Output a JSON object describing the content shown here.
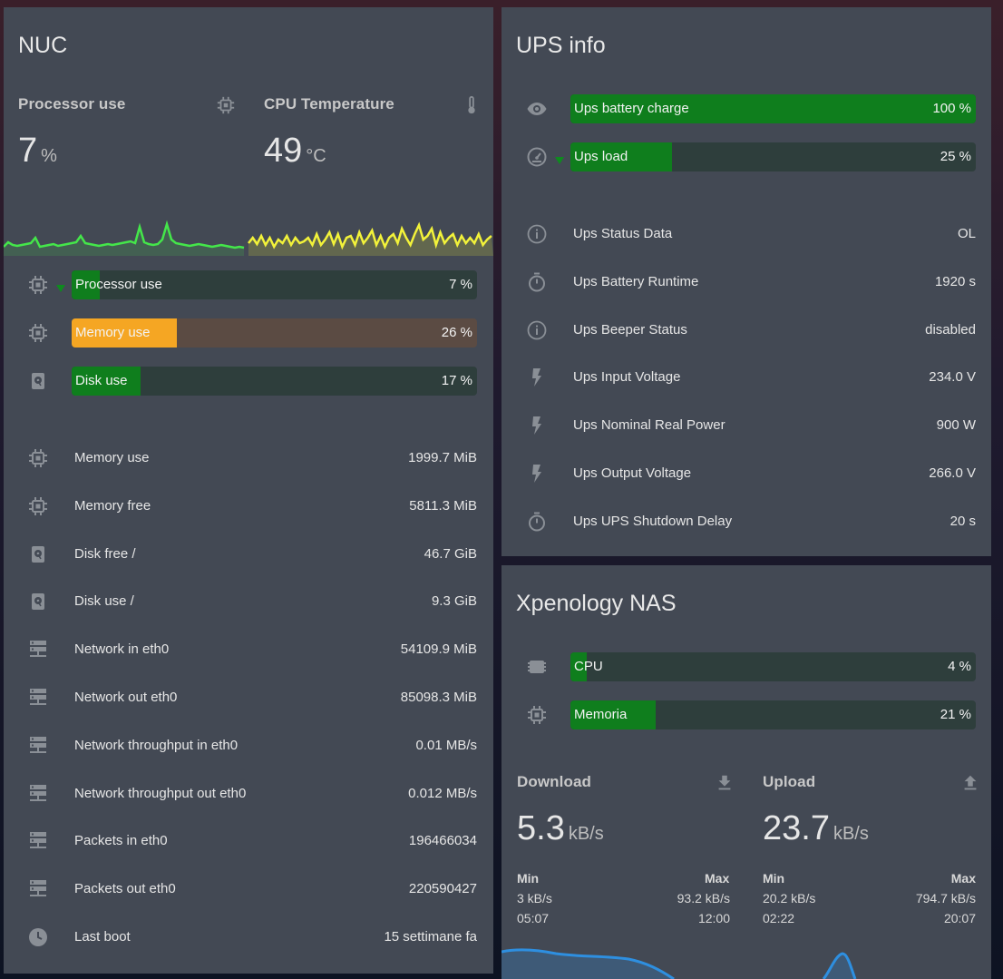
{
  "colors": {
    "card": "#434954",
    "green": "#0f7e1d",
    "orange": "#f5a623",
    "cpu_line": "#44e64a",
    "temp_line": "#f2f23a",
    "net_line": "#2e8fe0"
  },
  "nuc": {
    "title": "NUC",
    "processor": {
      "name": "Processor use",
      "value": "7",
      "unit": "%",
      "icon": "chip-icon"
    },
    "temperature": {
      "name": "CPU Temperature",
      "value": "49",
      "unit": "°C",
      "icon": "thermometer-icon"
    },
    "bars": [
      {
        "label": "Processor use",
        "value": "7 %",
        "fraction": 0.07,
        "icon": "chip-icon",
        "color": "green"
      },
      {
        "label": "Memory use",
        "value": "26 %",
        "fraction": 0.26,
        "icon": "chip-icon",
        "color": "orange"
      },
      {
        "label": "Disk use",
        "value": "17 %",
        "fraction": 0.17,
        "icon": "harddisk-icon",
        "color": "green"
      }
    ],
    "rows": [
      {
        "label": "Memory use",
        "value": "1999.7 MiB",
        "icon": "chip-icon"
      },
      {
        "label": "Memory free",
        "value": "5811.3 MiB",
        "icon": "chip-icon"
      },
      {
        "label": "Disk free /",
        "value": "46.7 GiB",
        "icon": "harddisk-icon"
      },
      {
        "label": "Disk use /",
        "value": "9.3 GiB",
        "icon": "harddisk-icon"
      },
      {
        "label": "Network in eth0",
        "value": "54109.9 MiB",
        "icon": "server-network-icon"
      },
      {
        "label": "Network out eth0",
        "value": "85098.3 MiB",
        "icon": "server-network-icon"
      },
      {
        "label": "Network throughput in eth0",
        "value": "0.01 MB/s",
        "icon": "server-network-icon"
      },
      {
        "label": "Network throughput out eth0",
        "value": "0.012 MB/s",
        "icon": "server-network-icon"
      },
      {
        "label": "Packets in eth0",
        "value": "196466034",
        "icon": "server-network-icon"
      },
      {
        "label": "Packets out eth0",
        "value": "220590427",
        "icon": "server-network-icon"
      },
      {
        "label": "Last boot",
        "value": "15 settimane fa",
        "icon": "clock-icon"
      }
    ]
  },
  "ups": {
    "title": "UPS info",
    "bars": [
      {
        "label": "Ups battery charge",
        "value": "100 %",
        "fraction": 1.0,
        "icon": "eye-icon"
      },
      {
        "label": "Ups load",
        "value": "25 %",
        "fraction": 0.25,
        "icon": "gauge-icon"
      }
    ],
    "rows": [
      {
        "label": "Ups Status Data",
        "value": "OL",
        "icon": "info-icon"
      },
      {
        "label": "Ups Battery Runtime",
        "value": "1920 s",
        "icon": "timer-icon"
      },
      {
        "label": "Ups Beeper Status",
        "value": "disabled",
        "icon": "info-icon"
      },
      {
        "label": "Ups Input Voltage",
        "value": "234.0 V",
        "icon": "flash-icon"
      },
      {
        "label": "Ups Nominal Real Power",
        "value": "900 W",
        "icon": "flash-icon"
      },
      {
        "label": "Ups Output Voltage",
        "value": "266.0 V",
        "icon": "flash-icon"
      },
      {
        "label": "Ups UPS Shutdown Delay",
        "value": "20 s",
        "icon": "timer-icon"
      }
    ]
  },
  "nas": {
    "title": "Xpenology NAS",
    "bars": [
      {
        "label": "CPU",
        "value": "4 %",
        "fraction": 0.04,
        "icon": "cpu-icon"
      },
      {
        "label": "Memoria",
        "value": "21 %",
        "fraction": 0.21,
        "icon": "chip-icon"
      }
    ],
    "download": {
      "name": "Download",
      "value": "5.3",
      "unit": "kB/s",
      "icon": "download-icon",
      "min_label": "Min",
      "max_label": "Max",
      "min": "3 kB/s",
      "max": "93.2 kB/s",
      "min_time": "05:07",
      "max_time": "12:00"
    },
    "upload": {
      "name": "Upload",
      "value": "23.7",
      "unit": "kB/s",
      "icon": "upload-icon",
      "min_label": "Min",
      "max_label": "Max",
      "min": "20.2 kB/s",
      "max": "794.7 kB/s",
      "min_time": "02:22",
      "max_time": "20:07"
    }
  }
}
